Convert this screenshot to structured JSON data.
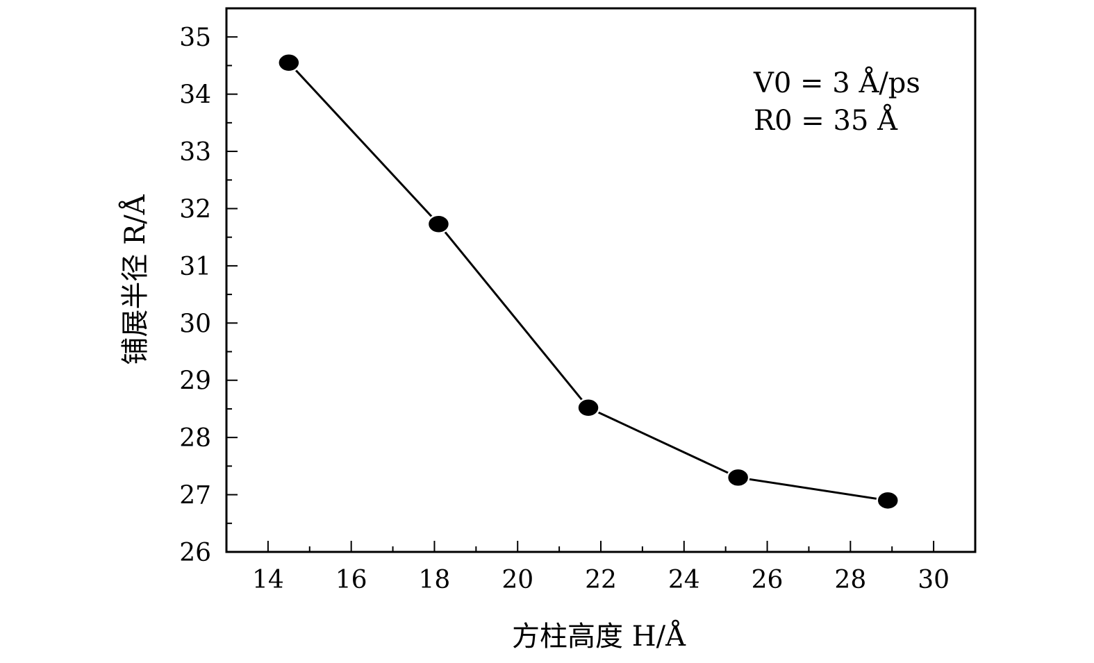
{
  "chart_data": {
    "type": "line",
    "title": "",
    "xlabel": "方柱高度 H/Å",
    "ylabel": "铺展半径 R/Å",
    "xlim": [
      13,
      31
    ],
    "ylim": [
      26,
      35.5
    ],
    "x_ticks": [
      14,
      16,
      18,
      20,
      22,
      24,
      26,
      28,
      30
    ],
    "y_ticks": [
      26,
      27,
      28,
      29,
      30,
      31,
      32,
      33,
      34,
      35
    ],
    "x_minor_step": 1,
    "y_minor_step": 0.5,
    "grid": false,
    "legend": "none",
    "annotations": [
      "V0 = 3 Å/ps",
      "R0 = 35 Å"
    ],
    "series": [
      {
        "x": [
          14.5,
          18.1,
          21.7,
          25.3,
          28.9
        ],
        "values": [
          34.55,
          31.73,
          28.52,
          27.3,
          26.9
        ],
        "color": "#000000",
        "marker": "filled-circle"
      }
    ]
  }
}
